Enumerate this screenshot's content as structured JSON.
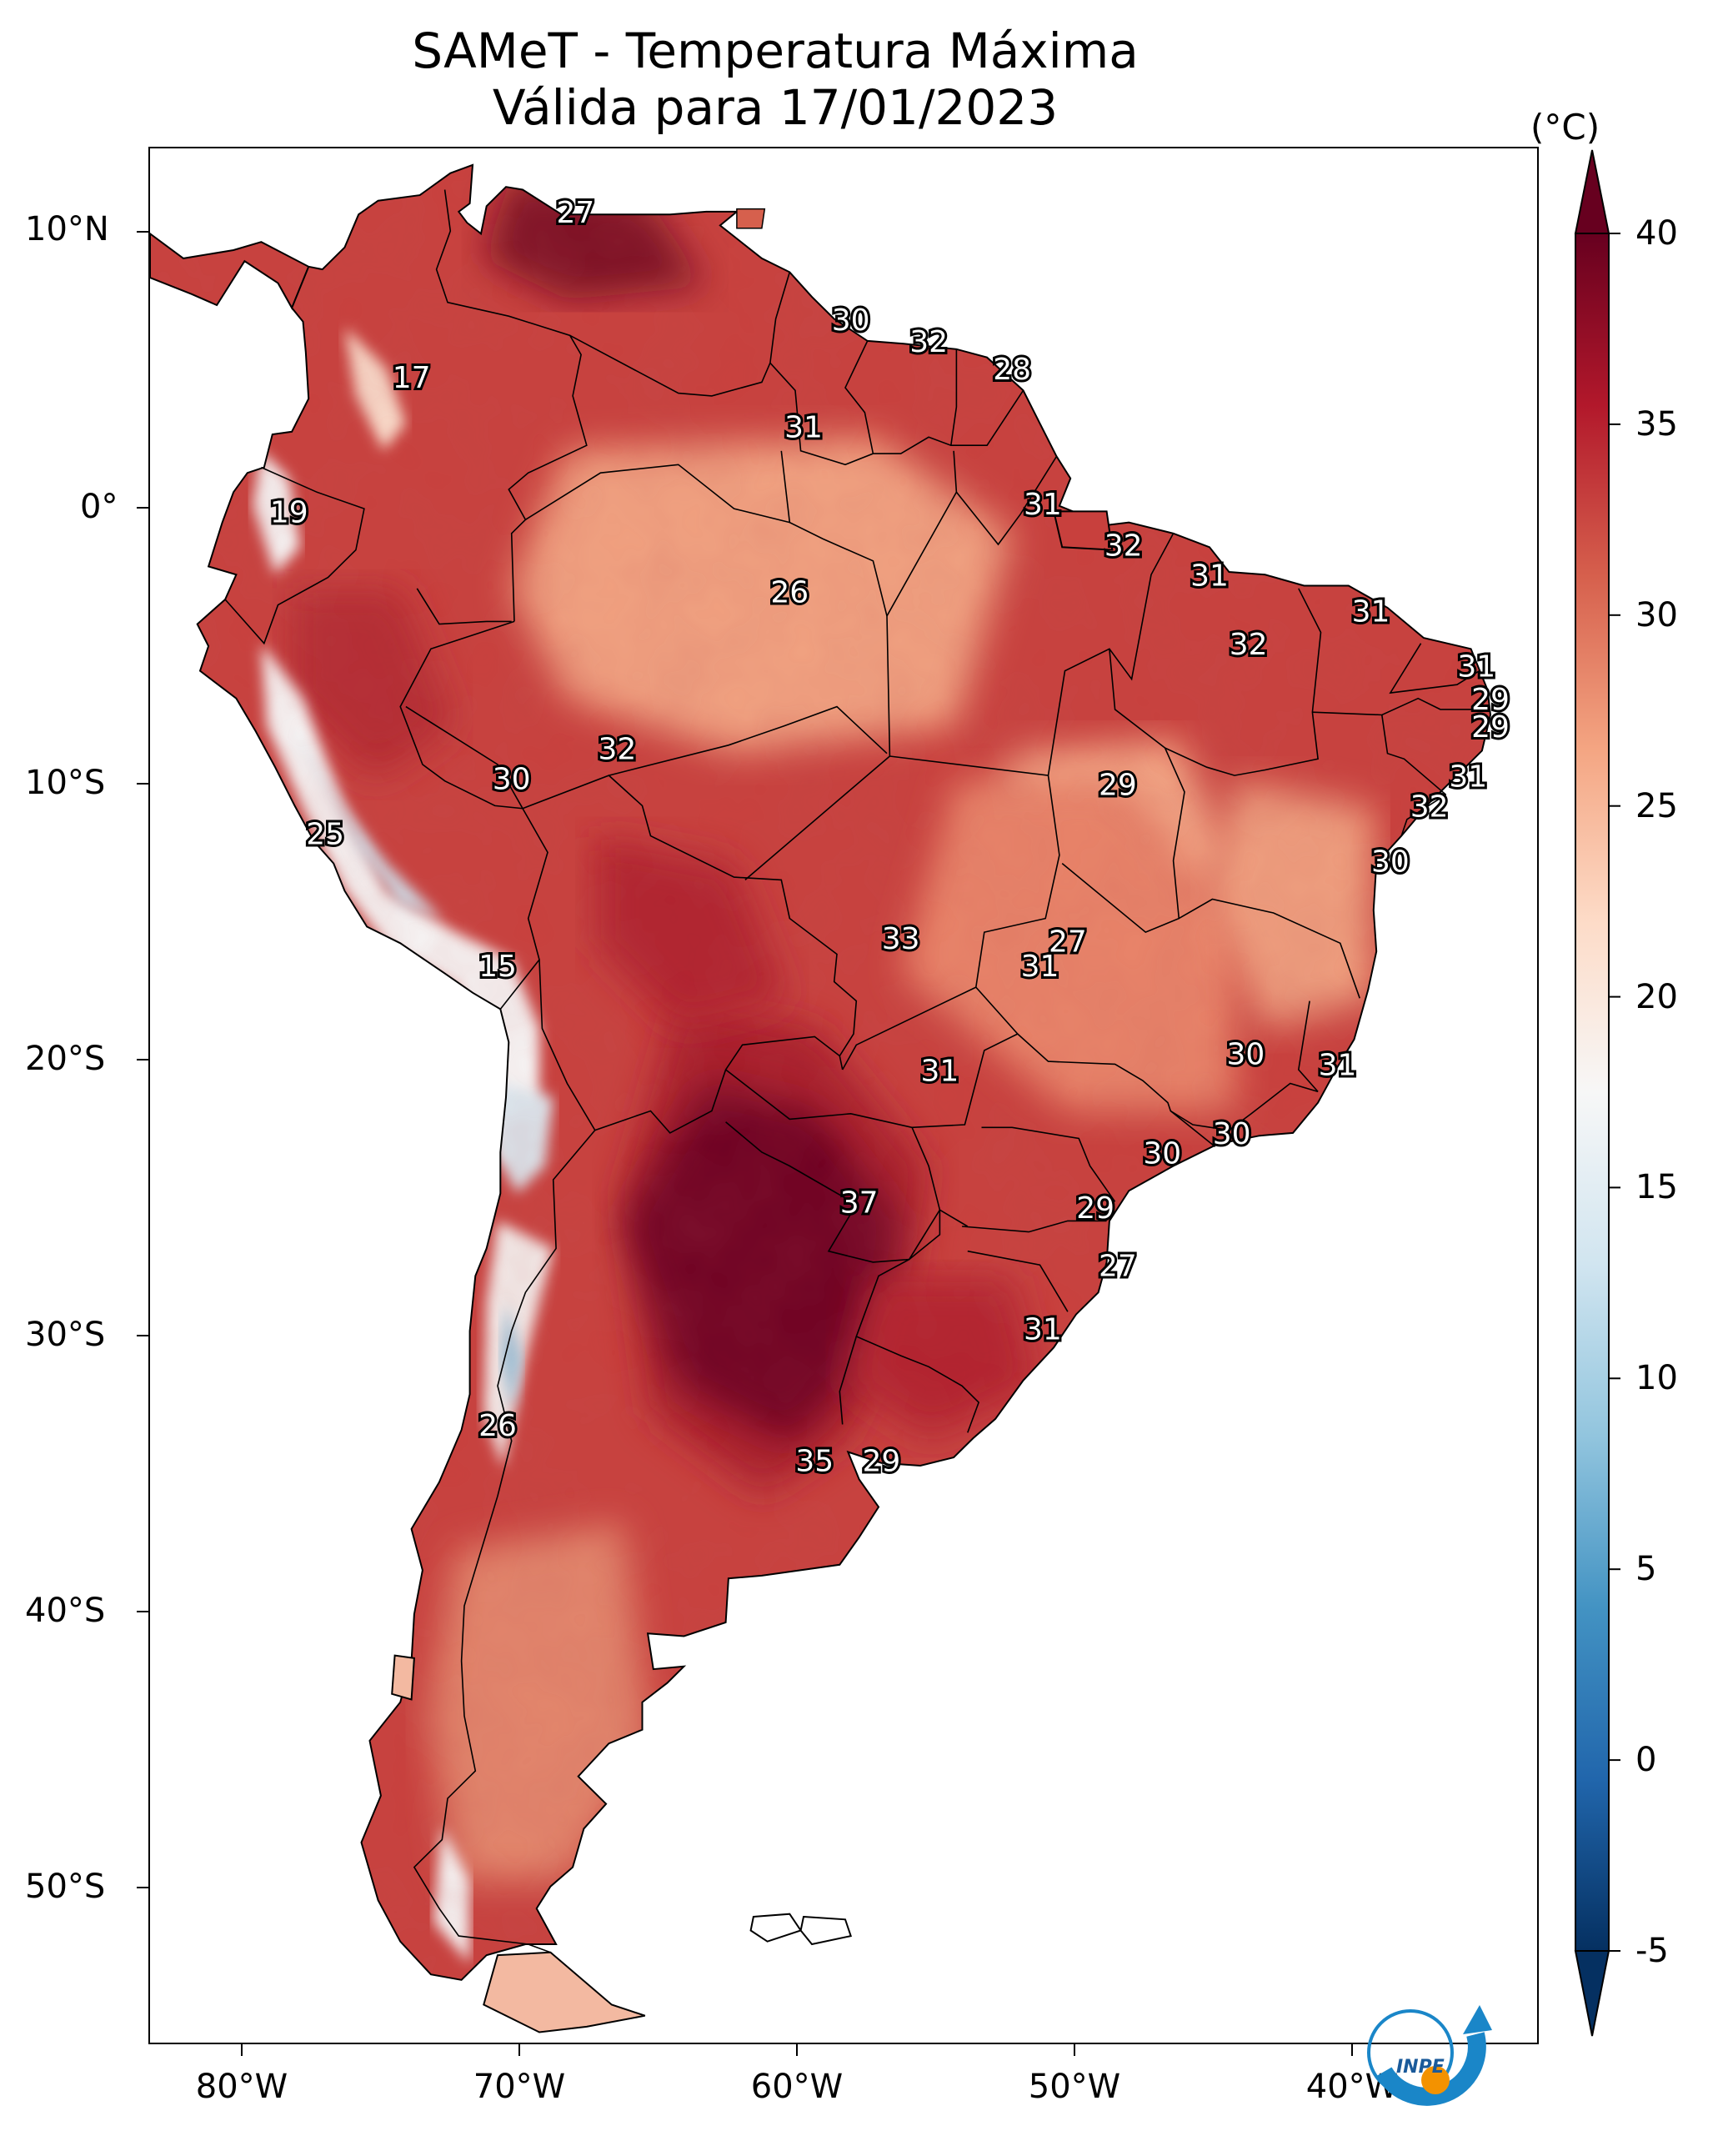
{
  "title": "SAMeT - Temperatura Máxima",
  "subtitle": "Válida para 17/01/2023",
  "colorbar": {
    "unit": "(°C)",
    "min": -5,
    "max": 40,
    "ticks": [
      "40",
      "35",
      "30",
      "25",
      "20",
      "15",
      "10",
      "5",
      "0",
      "-5"
    ],
    "palette": [
      "#053061",
      "#2166ac",
      "#4393c3",
      "#92c5de",
      "#d1e5f0",
      "#f7f7f7",
      "#fddbc7",
      "#f4a582",
      "#d6604d",
      "#b2182b",
      "#67001f"
    ]
  },
  "lat_labels": [
    "10°N",
    "0°",
    "10°S",
    "20°S",
    "30°S",
    "40°S",
    "50°S"
  ],
  "lon_labels": [
    "80°W",
    "70°W",
    "60°W",
    "50°W",
    "40°W"
  ],
  "map_extent": {
    "lon_min": -83,
    "lon_max": -33,
    "lat_min": -56,
    "lat_max": 13
  },
  "temperature_labels": [
    {
      "text": "27",
      "lon": -67.7,
      "lat": 10.6
    },
    {
      "text": "17",
      "lon": -73.6,
      "lat": 4.6
    },
    {
      "text": "30",
      "lon": -57.8,
      "lat": 6.7
    },
    {
      "text": "32",
      "lon": -55.0,
      "lat": 5.9
    },
    {
      "text": "28",
      "lon": -52.0,
      "lat": 4.9
    },
    {
      "text": "31",
      "lon": -59.5,
      "lat": 2.8
    },
    {
      "text": "19",
      "lon": -78.0,
      "lat": -0.3
    },
    {
      "text": "31",
      "lon": -50.9,
      "lat": 0.0
    },
    {
      "text": "32",
      "lon": -48.0,
      "lat": -1.5
    },
    {
      "text": "26",
      "lon": -60.0,
      "lat": -3.2
    },
    {
      "text": "31",
      "lon": -44.9,
      "lat": -2.6
    },
    {
      "text": "31",
      "lon": -39.1,
      "lat": -3.9
    },
    {
      "text": "32",
      "lon": -43.5,
      "lat": -5.1
    },
    {
      "text": "31",
      "lon": -35.3,
      "lat": -5.9
    },
    {
      "text": "29",
      "lon": -34.8,
      "lat": -7.1
    },
    {
      "text": "29",
      "lon": -34.8,
      "lat": -8.1
    },
    {
      "text": "32",
      "lon": -66.2,
      "lat": -8.9
    },
    {
      "text": "30",
      "lon": -70.0,
      "lat": -10.0
    },
    {
      "text": "29",
      "lon": -48.2,
      "lat": -10.2
    },
    {
      "text": "31",
      "lon": -35.6,
      "lat": -9.9
    },
    {
      "text": "32",
      "lon": -37.0,
      "lat": -11.0
    },
    {
      "text": "25",
      "lon": -76.7,
      "lat": -12.0
    },
    {
      "text": "30",
      "lon": -38.4,
      "lat": -13.0
    },
    {
      "text": "27",
      "lon": -50.0,
      "lat": -15.9
    },
    {
      "text": "33",
      "lon": -56.0,
      "lat": -15.8
    },
    {
      "text": "31",
      "lon": -51.0,
      "lat": -16.8
    },
    {
      "text": "15",
      "lon": -70.5,
      "lat": -16.8
    },
    {
      "text": "30",
      "lon": -43.6,
      "lat": -20.0
    },
    {
      "text": "31",
      "lon": -40.3,
      "lat": -20.4
    },
    {
      "text": "31",
      "lon": -54.6,
      "lat": -20.6
    },
    {
      "text": "30",
      "lon": -44.1,
      "lat": -22.9
    },
    {
      "text": "30",
      "lon": -46.6,
      "lat": -23.6
    },
    {
      "text": "37",
      "lon": -57.5,
      "lat": -25.4
    },
    {
      "text": "29",
      "lon": -49.0,
      "lat": -25.6
    },
    {
      "text": "27",
      "lon": -48.2,
      "lat": -27.7
    },
    {
      "text": "31",
      "lon": -50.9,
      "lat": -30.0
    },
    {
      "text": "26",
      "lon": -70.5,
      "lat": -33.5
    },
    {
      "text": "35",
      "lon": -59.1,
      "lat": -34.8
    },
    {
      "text": "29",
      "lon": -56.7,
      "lat": -34.8
    }
  ],
  "logo": {
    "text": "INPE"
  }
}
